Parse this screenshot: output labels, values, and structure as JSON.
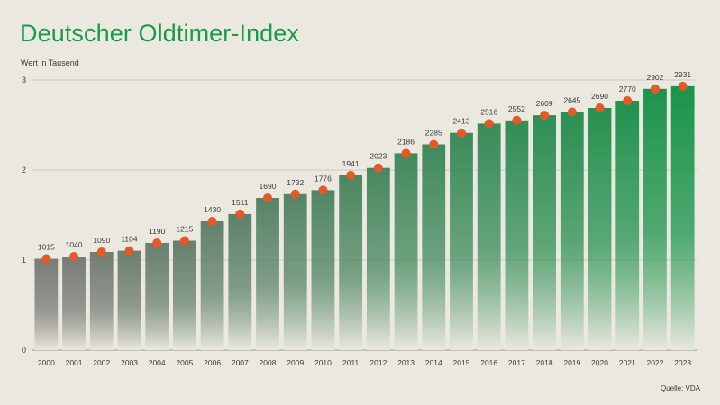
{
  "chart_data": {
    "type": "bar",
    "title": "Deutscher Oldtimer-Index",
    "ylabel": "Wert in Tausend",
    "xlabel": "",
    "source": "Quelle: VDA",
    "ylim": [
      0,
      3
    ],
    "yticks": [
      "0",
      "1",
      "2",
      "3"
    ],
    "grid": true,
    "categories": [
      "2000",
      "2001",
      "2002",
      "2003",
      "2004",
      "2005",
      "2006",
      "2007",
      "2008",
      "2009",
      "2010",
      "2011",
      "2012",
      "2013",
      "2014",
      "2015",
      "2016",
      "2017",
      "2018",
      "2019",
      "2020",
      "2021",
      "2022",
      "2023"
    ],
    "values": [
      1015,
      1040,
      1090,
      1104,
      1190,
      1215,
      1430,
      1511,
      1690,
      1732,
      1776,
      1941,
      2023,
      2186,
      2285,
      2413,
      2516,
      2552,
      2609,
      2645,
      2690,
      2770,
      2902,
      2931
    ],
    "labels": [
      "1015",
      "1040",
      "1090",
      "1104",
      "1190",
      "1215",
      "1430",
      "1511",
      "1690",
      "1732",
      "1776",
      "1941",
      "2023",
      "2186",
      "2285",
      "2413",
      "2516",
      "2552",
      "2609",
      "2645",
      "2690",
      "2770",
      "2902",
      "2931"
    ],
    "value_unit_divisor": 1000,
    "colors": {
      "bar_gray_top": "#7a7a77",
      "bar_gray_bottom": "#ebe8df",
      "bar_green_top": "#19944a",
      "bar_green_bottom": "#ebe8df",
      "marker": "#e35a26",
      "grid": "#c5c1b6",
      "title": "#1c9a4c"
    }
  }
}
